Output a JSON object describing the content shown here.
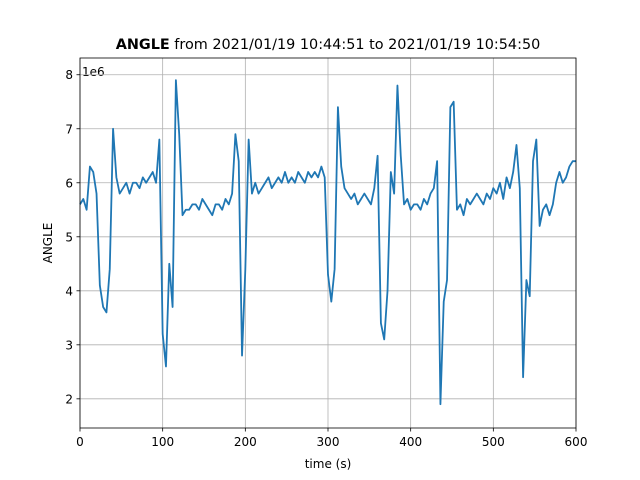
{
  "chart_data": {
    "type": "line",
    "title_bold": "ANGLE",
    "title": "from 2021/01/19 10:44:51 to 2021/01/19 10:54:50",
    "x_label": "time (s)",
    "y_label": "ANGLE",
    "y_offset_label": "1e6",
    "color": "#1f77b4",
    "grid": true,
    "xlim": [
      0,
      600
    ],
    "xticks": [
      0,
      100,
      200,
      300,
      400,
      500,
      600
    ],
    "ylim": [
      1.46,
      8.31
    ],
    "yticks": [
      2,
      3,
      4,
      5,
      6,
      7,
      8
    ],
    "x": [
      0,
      4,
      8,
      12,
      16,
      20,
      24,
      28,
      32,
      36,
      40,
      44,
      48,
      52,
      56,
      60,
      64,
      68,
      72,
      76,
      80,
      84,
      88,
      92,
      96,
      100,
      104,
      108,
      112,
      116,
      120,
      124,
      128,
      132,
      136,
      140,
      144,
      148,
      152,
      156,
      160,
      164,
      168,
      172,
      176,
      180,
      184,
      188,
      192,
      196,
      200,
      204,
      208,
      212,
      216,
      220,
      224,
      228,
      232,
      236,
      240,
      244,
      248,
      252,
      256,
      260,
      264,
      268,
      272,
      276,
      280,
      284,
      288,
      292,
      296,
      300,
      304,
      308,
      312,
      316,
      320,
      324,
      328,
      332,
      336,
      340,
      344,
      348,
      352,
      356,
      360,
      364,
      368,
      372,
      376,
      380,
      384,
      388,
      392,
      396,
      400,
      404,
      408,
      412,
      416,
      420,
      424,
      428,
      432,
      436,
      440,
      444,
      448,
      452,
      456,
      460,
      464,
      468,
      472,
      476,
      480,
      484,
      488,
      492,
      496,
      500,
      504,
      508,
      512,
      516,
      520,
      524,
      528,
      532,
      536,
      540,
      544,
      548,
      552,
      556,
      560,
      564,
      568,
      572,
      576,
      580,
      584,
      588,
      592,
      596,
      600
    ],
    "values": [
      5.6,
      5.7,
      5.5,
      6.3,
      6.2,
      5.8,
      4.1,
      3.7,
      3.6,
      4.4,
      7.0,
      6.1,
      5.8,
      5.9,
      6.0,
      5.8,
      6.0,
      6.0,
      5.9,
      6.1,
      6.0,
      6.1,
      6.2,
      6.0,
      6.8,
      3.2,
      2.6,
      4.5,
      3.7,
      7.9,
      6.9,
      5.4,
      5.5,
      5.5,
      5.6,
      5.6,
      5.5,
      5.7,
      5.6,
      5.5,
      5.4,
      5.6,
      5.6,
      5.5,
      5.7,
      5.6,
      5.8,
      6.9,
      6.4,
      2.8,
      4.4,
      6.8,
      5.8,
      6.0,
      5.8,
      5.9,
      6.0,
      6.1,
      5.9,
      6.0,
      6.1,
      6.0,
      6.2,
      6.0,
      6.1,
      6.0,
      6.2,
      6.1,
      6.0,
      6.2,
      6.1,
      6.2,
      6.1,
      6.3,
      6.1,
      4.3,
      3.8,
      4.4,
      7.4,
      6.3,
      5.9,
      5.8,
      5.7,
      5.8,
      5.6,
      5.7,
      5.8,
      5.7,
      5.6,
      5.9,
      6.5,
      3.4,
      3.1,
      4.0,
      6.2,
      5.8,
      7.8,
      6.5,
      5.6,
      5.7,
      5.5,
      5.6,
      5.6,
      5.5,
      5.7,
      5.6,
      5.8,
      5.9,
      6.4,
      1.9,
      3.8,
      4.2,
      7.4,
      7.5,
      5.5,
      5.6,
      5.4,
      5.7,
      5.6,
      5.7,
      5.8,
      5.7,
      5.6,
      5.8,
      5.7,
      5.9,
      5.8,
      6.0,
      5.7,
      6.1,
      5.9,
      6.2,
      6.7,
      5.9,
      2.4,
      4.2,
      3.9,
      6.4,
      6.8,
      5.2,
      5.5,
      5.6,
      5.4,
      5.6,
      6.0,
      6.2,
      6.0,
      6.1,
      6.3,
      6.4,
      6.4
    ]
  }
}
